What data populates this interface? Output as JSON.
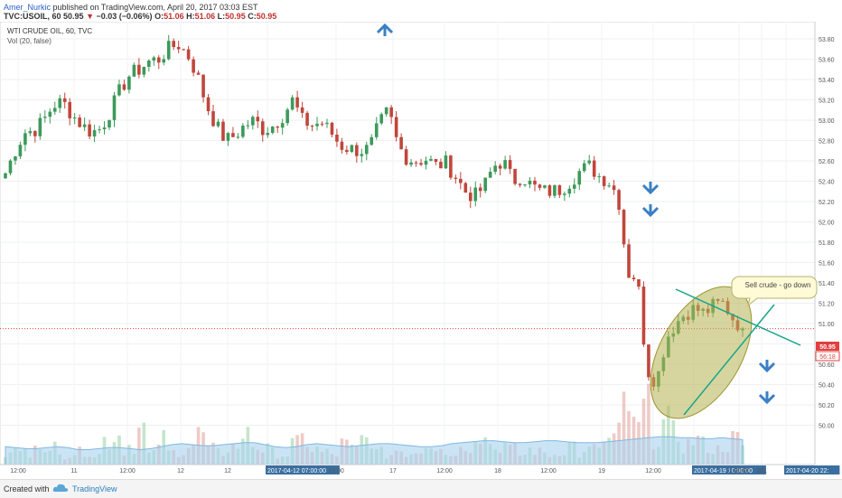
{
  "header": {
    "author": "Amer_Nurkic",
    "published": "published on TradingView.com, April 20, 2017 03:03 EST",
    "symbol": "TVC:USOIL, 60",
    "last": "50.95",
    "change_arrow": "▼",
    "change": "−0.03 (−0.06%)",
    "o_label": "O:",
    "o": "51.06",
    "h_label": "H:",
    "h": "51.06",
    "l_label": "L:",
    "l": "50.95",
    "c_label": "C:",
    "c": "50.95"
  },
  "footer": {
    "created": "Created with",
    "brand": "TradingView"
  },
  "colors": {
    "up": "#3c9a5a",
    "down": "#c0463c",
    "volume_ma": "#a9d2ef",
    "trendline": "#17a589",
    "ellipse": "#b7b350",
    "arrow": "#3a80c4",
    "last_price": "#e04040"
  },
  "chart_data": {
    "type": "candlestick",
    "title": "WTI CRUDE OIL, 60, TVC",
    "subtitle": "Vol (20, false)",
    "y_ticks": [
      "53.80",
      "53.60",
      "53.40",
      "53.20",
      "53.00",
      "52.80",
      "52.60",
      "52.40",
      "52.20",
      "52.00",
      "51.80",
      "51.60",
      "51.40",
      "51.20",
      "51.00",
      "50.80",
      "50.60",
      "50.40",
      "50.20",
      "50.00"
    ],
    "ylim": [
      49.9,
      53.9
    ],
    "x_ticks": [
      "12:00",
      "11",
      "12:00",
      "12",
      "12",
      "2017-04-12 07:00:00",
      "12:00",
      "17",
      "12:00",
      "18",
      "12:00",
      "19",
      "12:00",
      "2017-04-19 10:00:00",
      "1:00:00",
      "201",
      "2017-04-20 22:"
    ],
    "last_price": "50.95",
    "countdown": "56:18",
    "annotation": "Sell crude - go down",
    "price_path": [
      52.48,
      52.7,
      52.88,
      52.9,
      53.0,
      53.15,
      53.18,
      53.05,
      52.95,
      52.88,
      52.92,
      53.1,
      53.3,
      53.45,
      53.5,
      53.58,
      53.6,
      53.7,
      53.75,
      53.65,
      53.45,
      53.15,
      52.95,
      52.8,
      52.85,
      52.95,
      53.0,
      52.9,
      52.95,
      53.05,
      53.2,
      53.0,
      52.95,
      52.98,
      52.88,
      52.75,
      52.72,
      52.7,
      52.72,
      52.95,
      53.1,
      52.75,
      52.62,
      52.6,
      52.62,
      52.55,
      52.58,
      52.45,
      52.3,
      52.25,
      52.35,
      52.55,
      52.6,
      52.4,
      52.45,
      52.35,
      52.3,
      52.3,
      52.32,
      52.4,
      52.5,
      52.55,
      52.45,
      52.4,
      52.25,
      51.5,
      51.45,
      50.55,
      50.42,
      50.85,
      51.0,
      51.1,
      51.15,
      51.1,
      51.18,
      51.2,
      51.05,
      50.95
    ],
    "volume_scale": [
      0.1,
      0.15,
      0.12,
      0.3,
      0.1,
      0.2,
      0.1,
      0.12,
      0.15,
      0.1,
      0.25,
      0.3,
      0.15,
      0.2,
      0.35,
      0.1,
      0.25,
      0.12,
      0.15,
      0.2,
      0.3,
      0.15,
      0.12,
      0.18,
      0.2,
      0.45,
      0.2,
      0.15,
      0.12,
      0.1,
      0.2,
      0.25,
      0.15,
      0.12,
      0.1,
      0.2,
      0.15,
      0.25,
      0.3,
      0.12,
      0.1,
      0.15,
      0.12,
      0.15,
      0.25,
      0.2,
      0.1,
      0.15,
      0.2,
      0.35,
      0.25,
      0.15,
      0.2,
      0.15,
      0.1,
      0.15,
      0.12,
      0.1,
      0.15,
      0.2,
      0.1,
      0.15,
      0.2,
      0.25,
      0.3,
      0.6,
      0.35,
      0.55,
      0.3,
      0.4,
      0.3,
      0.2,
      0.25,
      0.2,
      0.15,
      0.2,
      0.25,
      0.15
    ],
    "volume_ma": [
      0.18,
      0.17,
      0.16,
      0.16,
      0.17,
      0.18,
      0.17,
      0.15,
      0.15,
      0.16,
      0.17,
      0.17,
      0.16,
      0.15,
      0.16,
      0.18,
      0.2,
      0.21,
      0.2,
      0.19,
      0.19,
      0.2,
      0.21,
      0.22,
      0.22,
      0.2,
      0.18,
      0.17,
      0.18,
      0.2,
      0.21,
      0.2,
      0.19,
      0.18,
      0.19,
      0.2,
      0.21,
      0.21,
      0.2,
      0.19,
      0.18,
      0.18,
      0.19,
      0.21,
      0.22,
      0.23,
      0.24,
      0.24,
      0.23,
      0.22,
      0.22,
      0.23,
      0.24,
      0.24,
      0.23,
      0.22,
      0.22,
      0.22,
      0.23,
      0.24,
      0.25,
      0.26,
      0.27,
      0.28,
      0.28,
      0.27,
      0.27,
      0.26,
      0.26,
      0.27,
      0.26,
      0.25
    ]
  }
}
